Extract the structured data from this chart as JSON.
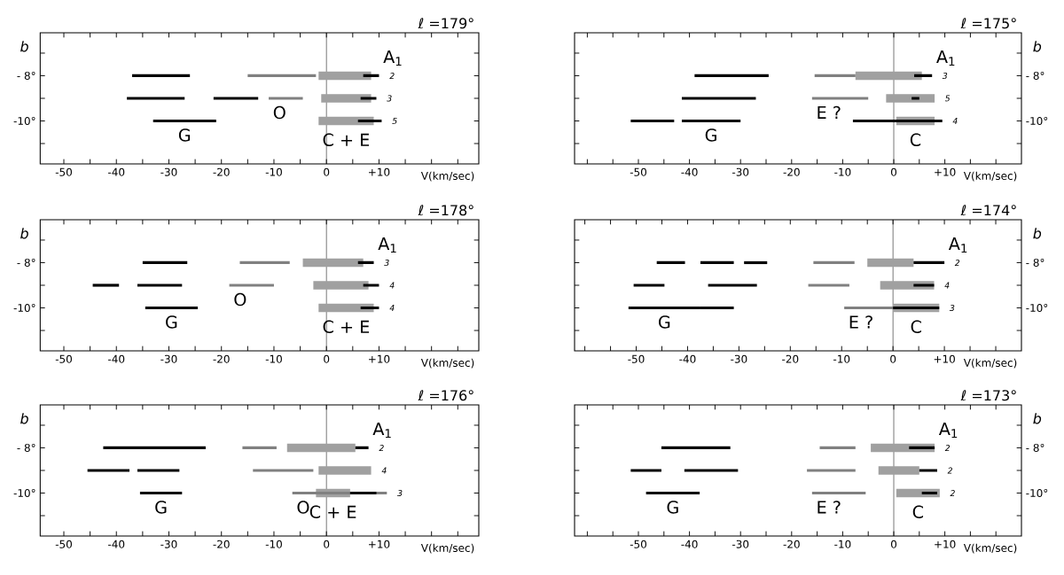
{
  "chart_data": [
    {
      "type": "line",
      "title": "ℓ =179°",
      "xlabel": "V(km/sec)",
      "ylabel": "b",
      "xlim": [
        -54.5,
        29
      ],
      "ylim": [
        -11.9,
        -6.1
      ],
      "xticks": [
        -50,
        {
          "value": -45,
          "label": null
        },
        -40,
        {
          "value": -35,
          "label": null
        },
        -30,
        {
          "value": -25,
          "label": null
        },
        -20,
        {
          "value": -15,
          "label": null
        },
        -10,
        {
          "value": -5,
          "label": null
        },
        0,
        {
          "value": 5,
          "label": null
        },
        {
          "value": 10,
          "label": "+10"
        },
        {
          "value": 15,
          "label": null
        },
        {
          "value": 20,
          "label": null
        },
        {
          "value": 25,
          "label": null
        }
      ],
      "yticks": [
        {
          "value": -7,
          "label": null
        },
        {
          "value": -8,
          "label": "- 8°"
        },
        {
          "value": -9,
          "label": null
        },
        {
          "value": -10,
          "label": "-10°"
        },
        {
          "value": -11,
          "label": null
        }
      ],
      "ref_lines": [
        {
          "axis": "x",
          "value": 0
        }
      ],
      "annotations": [
        "2",
        "3",
        "5"
      ],
      "series": [
        {
          "name": "C + E",
          "color": "#a0a0a0",
          "x": [
            -1.5,
            8.5,
            null,
            -1,
            8.5,
            null,
            -1.5,
            9
          ],
          "values": [
            -8,
            -8,
            null,
            -9,
            -9,
            null,
            -10,
            -10
          ]
        },
        {
          "name": "G",
          "color": "#000000",
          "x": [
            -37,
            -26,
            null,
            -38,
            -27,
            null,
            -33,
            -21
          ],
          "values": [
            -8,
            -8,
            null,
            -9,
            -9,
            null,
            -10,
            -10
          ]
        },
        {
          "color": "#000000",
          "x": [
            -21.5,
            -13
          ],
          "values": [
            -9,
            -9
          ]
        },
        {
          "name": "O",
          "color": "#808080",
          "x": [
            -15,
            -2,
            null,
            -11,
            -4.5
          ],
          "values": [
            -8,
            -8,
            null,
            -9,
            -9
          ]
        },
        {
          "name": "A$_{1}$",
          "color": "#000000",
          "x": [
            7,
            10,
            null,
            6.5,
            9.5,
            null,
            6,
            10.5
          ],
          "values": [
            -8,
            -8,
            null,
            -9,
            -9,
            null,
            -10,
            -10
          ]
        }
      ]
    },
    {
      "type": "line",
      "title": "ℓ =175°",
      "xlabel": "V(km/sec)",
      "ylabel": "b",
      "xlim": [
        -62.5,
        25
      ],
      "ylim": [
        -11.9,
        -6.1
      ],
      "xticks": [
        {
          "value": -60,
          "label": null
        },
        {
          "value": -55,
          "label": null
        },
        -50,
        {
          "value": -45,
          "label": null
        },
        -40,
        {
          "value": -35,
          "label": null
        },
        -30,
        {
          "value": -25,
          "label": null
        },
        -20,
        {
          "value": -15,
          "label": null
        },
        -10,
        {
          "value": -5,
          "label": null
        },
        0,
        {
          "value": 5,
          "label": null
        },
        {
          "value": 10,
          "label": "+10"
        },
        {
          "value": 15,
          "label": null
        },
        {
          "value": 20,
          "label": null
        }
      ],
      "yticks": [
        {
          "value": -7,
          "label": null
        },
        {
          "value": -8,
          "label": "- 8°"
        },
        {
          "value": -9,
          "label": null
        },
        {
          "value": -10,
          "label": "-10°"
        },
        {
          "value": -11,
          "label": null
        }
      ],
      "ref_lines": [
        {
          "axis": "x",
          "value": 0
        }
      ],
      "annotations": [
        "3",
        "5",
        "4"
      ],
      "series": [
        {
          "name": "C",
          "color": "#a0a0a0",
          "x": [
            -7.5,
            5.5,
            null,
            -1.5,
            8,
            null,
            0.5,
            8
          ],
          "values": [
            -8,
            -8,
            null,
            -9,
            -9,
            null,
            -10,
            -10
          ]
        },
        {
          "name": "G",
          "color": "#000000",
          "x": [
            -39,
            -24.5,
            null,
            -41.5,
            -27,
            null,
            -41.5,
            -30
          ],
          "values": [
            -8,
            -8,
            null,
            -9,
            -9,
            null,
            -10,
            -10
          ]
        },
        {
          "color": "#000000",
          "x": [
            -51.5,
            -43
          ],
          "values": [
            -10,
            -10
          ]
        },
        {
          "name": "E ?",
          "color": "#808080",
          "x": [
            -15.5,
            -7.5,
            null,
            -16,
            -5
          ],
          "values": [
            -8,
            -8,
            null,
            -9,
            -9
          ]
        },
        {
          "name": "A$_{1}$",
          "color": "#000000",
          "x": [
            4,
            7.5,
            null,
            3.5,
            5,
            null,
            -8,
            9.5
          ],
          "values": [
            -8,
            -8,
            null,
            -9,
            -9,
            null,
            -10,
            -10
          ]
        }
      ]
    },
    {
      "type": "line",
      "title": "ℓ =178°",
      "xlabel": "V(km/sec)",
      "ylabel": "b",
      "xlim": [
        -54.5,
        29
      ],
      "ylim": [
        -11.9,
        -6.1
      ],
      "xticks": [
        -50,
        {
          "value": -45,
          "label": null
        },
        -40,
        {
          "value": -35,
          "label": null
        },
        -30,
        {
          "value": -25,
          "label": null
        },
        -20,
        {
          "value": -15,
          "label": null
        },
        -10,
        {
          "value": -5,
          "label": null
        },
        0,
        {
          "value": 5,
          "label": null
        },
        {
          "value": 10,
          "label": "+10"
        },
        {
          "value": 15,
          "label": null
        },
        {
          "value": 20,
          "label": null
        },
        {
          "value": 25,
          "label": null
        }
      ],
      "yticks": [
        {
          "value": -7,
          "label": null
        },
        {
          "value": -8,
          "label": "- 8°"
        },
        {
          "value": -9,
          "label": null
        },
        {
          "value": -10,
          "label": "-10°"
        },
        {
          "value": -11,
          "label": null
        }
      ],
      "ref_lines": [
        {
          "axis": "x",
          "value": 0
        }
      ],
      "annotations": [
        "3",
        "4",
        "4"
      ],
      "series": [
        {
          "name": "C + E",
          "color": "#a0a0a0",
          "x": [
            -4.5,
            7,
            null,
            -2.5,
            8,
            null,
            -1.5,
            9
          ],
          "values": [
            -8,
            -8,
            null,
            -9,
            -9,
            null,
            -10,
            -10
          ]
        },
        {
          "name": "G",
          "color": "#000000",
          "x": [
            -35,
            -26.5,
            null,
            -36,
            -27.5,
            null,
            -34.5,
            -24.5
          ],
          "values": [
            -8,
            -8,
            null,
            -9,
            -9,
            null,
            -10,
            -10
          ]
        },
        {
          "color": "#000000",
          "x": [
            -44.5,
            -39.5
          ],
          "values": [
            -9,
            -9
          ]
        },
        {
          "name": "O",
          "color": "#808080",
          "x": [
            -16.5,
            -7,
            null,
            -18.5,
            -10
          ],
          "values": [
            -8,
            -8,
            null,
            -9,
            -9
          ]
        },
        {
          "name": "A$_{1}$",
          "color": "#000000",
          "x": [
            6,
            9,
            null,
            7,
            10,
            null,
            6.5,
            10
          ],
          "values": [
            -8,
            -8,
            null,
            -9,
            -9,
            null,
            -10,
            -10
          ]
        }
      ]
    },
    {
      "type": "line",
      "title": "ℓ =174°",
      "xlabel": "V(km/sec)",
      "ylabel": "b",
      "xlim": [
        -62,
        25
      ],
      "ylim": [
        -11.9,
        -6.1
      ],
      "xticks": [
        {
          "value": -60,
          "label": null
        },
        {
          "value": -55,
          "label": null
        },
        -50,
        {
          "value": -45,
          "label": null
        },
        -40,
        {
          "value": -35,
          "label": null
        },
        -30,
        {
          "value": -25,
          "label": null
        },
        -20,
        {
          "value": -15,
          "label": null
        },
        -10,
        {
          "value": -5,
          "label": null
        },
        0,
        {
          "value": 5,
          "label": null
        },
        {
          "value": 10,
          "label": "+10"
        },
        {
          "value": 15,
          "label": null
        },
        {
          "value": 20,
          "label": null
        }
      ],
      "yticks": [
        {
          "value": -7,
          "label": null
        },
        {
          "value": -8,
          "label": "- 8°"
        },
        {
          "value": -9,
          "label": null
        },
        {
          "value": -10,
          "label": "-10°"
        },
        {
          "value": -11,
          "label": null
        }
      ],
      "ref_lines": [
        {
          "axis": "x",
          "value": 0
        }
      ],
      "annotations": [
        "2",
        "4",
        "3"
      ],
      "series": [
        {
          "name": "C",
          "color": "#a0a0a0",
          "x": [
            -5,
            4,
            null,
            -2.5,
            8,
            null,
            0,
            9
          ],
          "values": [
            -8,
            -8,
            null,
            -9,
            -9,
            null,
            -10,
            -10
          ]
        },
        {
          "name": "G",
          "color": "#000000",
          "x": [
            -37.5,
            -31,
            null,
            -50.5,
            -44.5,
            null,
            -51.5,
            -37.5
          ],
          "values": [
            -8,
            -8,
            null,
            -9,
            -9,
            null,
            -10,
            -10
          ]
        },
        {
          "color": "#000000",
          "x": [
            -46,
            -40.5,
            null,
            -36,
            -26.5,
            null,
            -37.5,
            -31
          ],
          "values": [
            -8,
            -8,
            null,
            -9,
            -9,
            null,
            -10,
            -10
          ]
        },
        {
          "color": "#000000",
          "x": [
            -29,
            -24.5
          ],
          "values": [
            -8,
            -8
          ]
        },
        {
          "name": "E ?",
          "color": "#808080",
          "x": [
            -15.5,
            -7.5,
            null,
            -16.5,
            -8.5,
            null,
            -9.5,
            0
          ],
          "values": [
            -8,
            -8,
            null,
            -9,
            -9,
            null,
            -10,
            -10
          ]
        },
        {
          "name": "A$_{1}$",
          "color": "#000000",
          "x": [
            4,
            10,
            null,
            4,
            8,
            null,
            0,
            9
          ],
          "values": [
            -8,
            -8,
            null,
            -9,
            -9,
            null,
            -10,
            -10
          ]
        }
      ]
    },
    {
      "type": "line",
      "title": "ℓ =176°",
      "xlabel": "V(km/sec)",
      "ylabel": "b",
      "xlim": [
        -54.5,
        29
      ],
      "ylim": [
        -11.9,
        -6.1
      ],
      "xticks": [
        -50,
        {
          "value": -45,
          "label": null
        },
        -40,
        {
          "value": -35,
          "label": null
        },
        -30,
        {
          "value": -25,
          "label": null
        },
        -20,
        {
          "value": -15,
          "label": null
        },
        -10,
        {
          "value": -5,
          "label": null
        },
        0,
        {
          "value": 5,
          "label": null
        },
        {
          "value": 10,
          "label": "+10"
        },
        {
          "value": 15,
          "label": null
        },
        {
          "value": 20,
          "label": null
        },
        {
          "value": 25,
          "label": null
        }
      ],
      "yticks": [
        {
          "value": -7,
          "label": null
        },
        {
          "value": -8,
          "label": "- 8°"
        },
        {
          "value": -9,
          "label": null
        },
        {
          "value": -10,
          "label": "-10°"
        },
        {
          "value": -11,
          "label": null
        }
      ],
      "ref_lines": [
        {
          "axis": "x",
          "value": 0
        }
      ],
      "annotations": [
        "2",
        "4",
        "3"
      ],
      "series": [
        {
          "name": "C + E",
          "color": "#a0a0a0",
          "x": [
            -7.5,
            5.5,
            null,
            -1.5,
            8.5,
            null,
            -2,
            4.5
          ],
          "values": [
            -8,
            -8,
            null,
            -9,
            -9,
            null,
            -10,
            -10
          ]
        },
        {
          "name": "G",
          "color": "#000000",
          "x": [
            -42.5,
            -23,
            null,
            -45.5,
            -37.5,
            null,
            -35.5,
            -27.5
          ],
          "values": [
            -8,
            -8,
            null,
            -9,
            -9,
            null,
            -10,
            -10
          ]
        },
        {
          "color": "#000000",
          "x": [
            -36,
            -28
          ],
          "values": [
            -9,
            -9
          ]
        },
        {
          "name": "O",
          "color": "#808080",
          "x": [
            -16,
            -9.5,
            null,
            -14,
            -2.5,
            null,
            -6.5,
            11.5
          ],
          "values": [
            -8,
            -8,
            null,
            -9,
            -9,
            null,
            -10,
            -10
          ]
        },
        {
          "name": "A$_{1}$",
          "color": "#000000",
          "x": [
            5.5,
            8,
            null,
            4.5,
            9.5
          ],
          "values": [
            -8,
            -8,
            null,
            -10,
            -10
          ]
        }
      ]
    },
    {
      "type": "line",
      "title": "ℓ =173°",
      "xlabel": "V(km/sec)",
      "ylabel": "b",
      "xlim": [
        -62.5,
        25
      ],
      "ylim": [
        -11.9,
        -6.1
      ],
      "xticks": [
        {
          "value": -60,
          "label": null
        },
        {
          "value": -55,
          "label": null
        },
        -50,
        {
          "value": -45,
          "label": null
        },
        -40,
        {
          "value": -35,
          "label": null
        },
        -30,
        {
          "value": -25,
          "label": null
        },
        -20,
        {
          "value": -15,
          "label": null
        },
        -10,
        {
          "value": -5,
          "label": null
        },
        0,
        {
          "value": 5,
          "label": null
        },
        {
          "value": 10,
          "label": "+10"
        },
        {
          "value": 15,
          "label": null
        },
        {
          "value": 20,
          "label": null
        }
      ],
      "yticks": [
        {
          "value": -7,
          "label": null
        },
        {
          "value": -8,
          "label": "- 8°"
        },
        {
          "value": -9,
          "label": null
        },
        {
          "value": -10,
          "label": "-10°"
        },
        {
          "value": -11,
          "label": null
        }
      ],
      "ref_lines": [
        {
          "axis": "x",
          "value": 0
        }
      ],
      "annotations": [
        "2",
        "2",
        "2"
      ],
      "series": [
        {
          "name": "C",
          "color": "#a0a0a0",
          "x": [
            -4.5,
            8,
            null,
            -3,
            5,
            null,
            0.5,
            9
          ],
          "values": [
            -8,
            -8,
            null,
            -9,
            -9,
            null,
            -10,
            -10
          ]
        },
        {
          "name": "G",
          "color": "#000000",
          "x": [
            -45.5,
            -32,
            null,
            -51.5,
            -45.5,
            null,
            -48.5,
            -38
          ],
          "values": [
            -8,
            -8,
            null,
            -9,
            -9,
            null,
            -10,
            -10
          ]
        },
        {
          "color": "#000000",
          "x": [
            -41,
            -30.5
          ],
          "values": [
            -9,
            -9
          ]
        },
        {
          "name": "E ?",
          "color": "#808080",
          "x": [
            -14.5,
            -7.5,
            null,
            -17,
            -7.5,
            null,
            -16,
            -5.5
          ],
          "values": [
            -8,
            -8,
            null,
            -9,
            -9,
            null,
            -10,
            -10
          ]
        },
        {
          "name": "A$_{1}$",
          "color": "#000000",
          "x": [
            3,
            8,
            null,
            5,
            8.5,
            null,
            5.5,
            8.5
          ],
          "values": [
            -8,
            -8,
            null,
            -9,
            -9,
            null,
            -10,
            -10
          ]
        }
      ]
    }
  ]
}
